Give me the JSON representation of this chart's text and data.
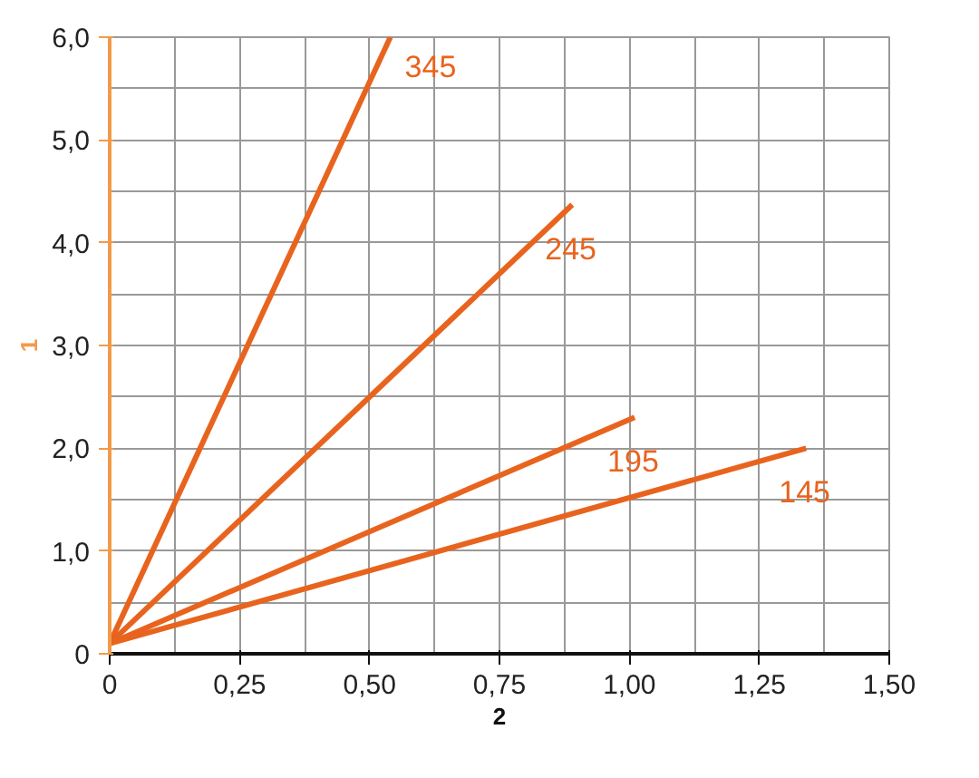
{
  "chart_data": {
    "type": "line",
    "xlabel": "2",
    "ylabel": "1",
    "xlim": [
      0,
      1.5
    ],
    "ylim": [
      0,
      6
    ],
    "xticks": [
      {
        "value": 0,
        "label": "0"
      },
      {
        "value": 0.25,
        "label": "0,25"
      },
      {
        "value": 0.5,
        "label": "0,50"
      },
      {
        "value": 0.75,
        "label": "0,75"
      },
      {
        "value": 1,
        "label": "1,00"
      },
      {
        "value": 1.25,
        "label": "1,25"
      },
      {
        "value": 1.5,
        "label": "1,50"
      }
    ],
    "yticks": [
      {
        "value": 0,
        "label": "0"
      },
      {
        "value": 1,
        "label": "1,0"
      },
      {
        "value": 2,
        "label": "2,0"
      },
      {
        "value": 3,
        "label": "3,0"
      },
      {
        "value": 4,
        "label": "4,0"
      },
      {
        "value": 5,
        "label": "5,0"
      },
      {
        "value": 6,
        "label": "6,0"
      }
    ],
    "grid": true,
    "marker": "none",
    "line_style": "solid",
    "series": [
      {
        "name": "345",
        "color": "#e8641e",
        "x": [
          0,
          0.54
        ],
        "values": [
          0.1,
          6.0
        ]
      },
      {
        "name": "245",
        "color": "#e8641e",
        "x": [
          0,
          0.89
        ],
        "values": [
          0.1,
          4.37
        ]
      },
      {
        "name": "195",
        "color": "#e8641e",
        "x": [
          0,
          1.01
        ],
        "values": [
          0.1,
          2.3
        ]
      },
      {
        "name": "145",
        "color": "#e8641e",
        "x": [
          0,
          1.34
        ],
        "values": [
          0.1,
          2.0
        ]
      }
    ]
  }
}
